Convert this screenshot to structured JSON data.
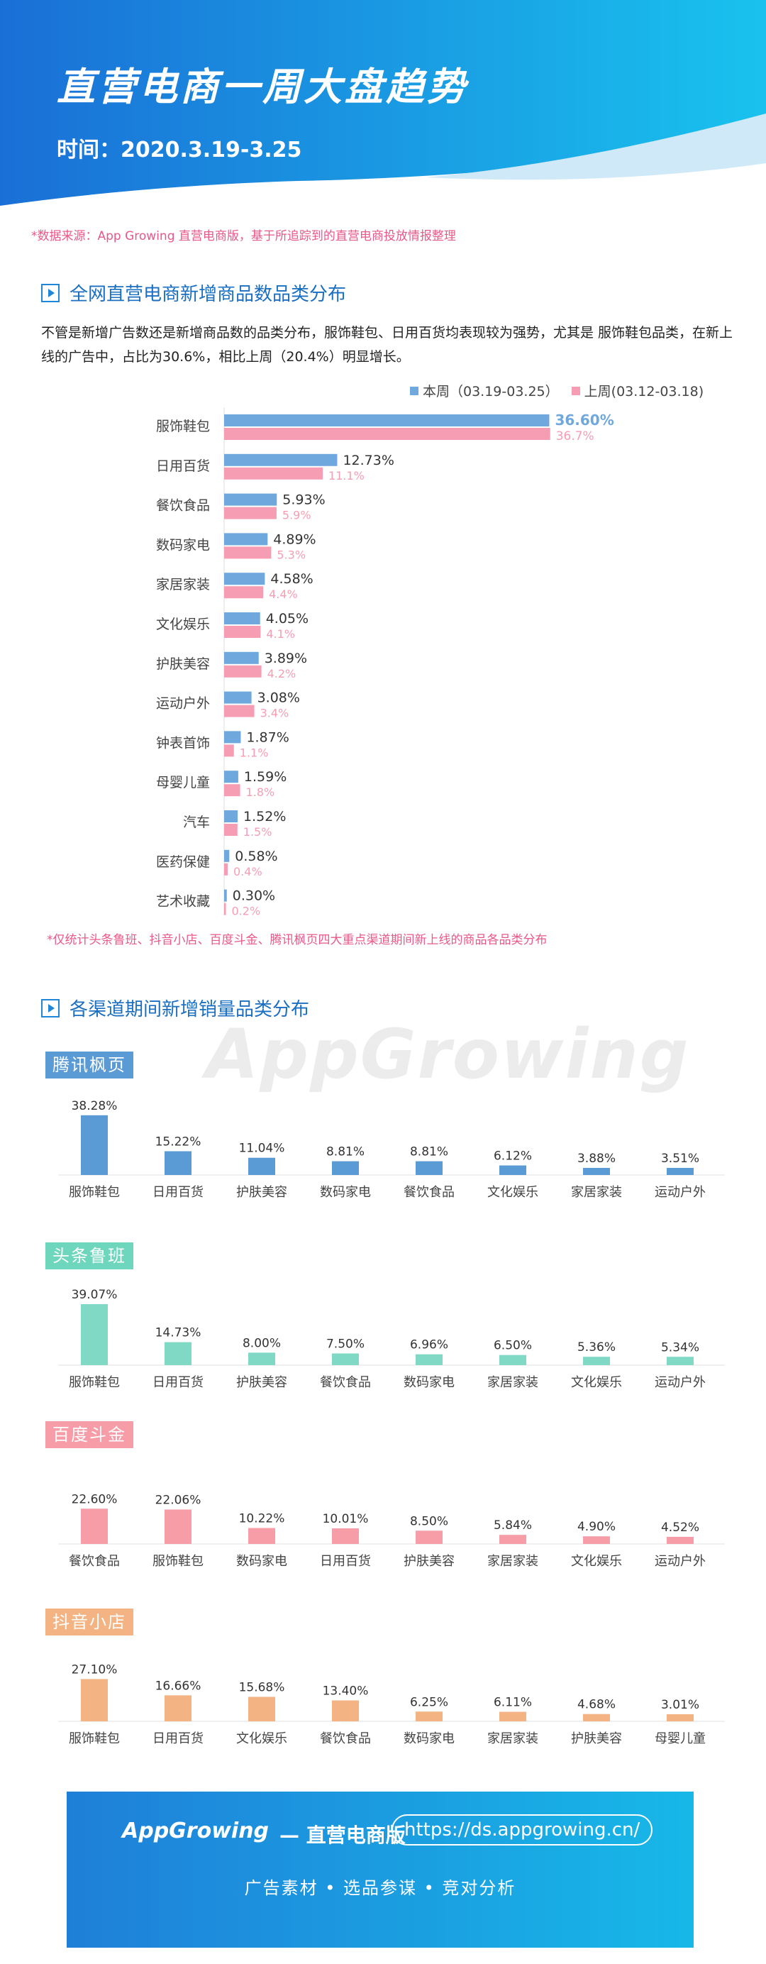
{
  "header": {
    "title": "直营电商一周大盘趋势",
    "date": "时间：2020.3.19-3.25",
    "source": "*数据来源：App Growing 直营电商版，基于所追踪到的直营电商投放情报整理"
  },
  "colors": {
    "this_week": "#6fa8dc",
    "last_week": "#f79db3",
    "tencent": "#5b9bd5",
    "toutiao": "#7fd9c5",
    "baidu": "#f79da8",
    "douyin": "#f3b383"
  },
  "section1": {
    "title": "全网直营电商新增商品数品类分布",
    "description": "不管是新增广告数还是新增商品数的品类分布，服饰鞋包、日用百货均表现较为强势，尤其是 服饰鞋包品类，在新上线的广告中，占比为30.6%，相比上周（20.4%）明显增长。",
    "legend_this": "本周（03.19-03.25）",
    "legend_last": "上周(03.12-03.18)",
    "note": "*仅统计头条鲁班、抖音小店、百度斗金、腾讯枫页四大重点渠道期间新上线的商品各品类分布"
  },
  "section2": {
    "title": "各渠道期间新增销量品类分布",
    "watermark": "AppGrowing"
  },
  "chart_data": [
    {
      "type": "bar",
      "orientation": "horizontal",
      "categories": [
        "服饰鞋包",
        "日用百货",
        "餐饮食品",
        "数码家电",
        "家居家装",
        "文化娱乐",
        "护肤美容",
        "运动户外",
        "钟表首饰",
        "母婴儿童",
        "汽车",
        "医药保健",
        "艺术收藏"
      ],
      "series": [
        {
          "name": "本周（03.19-03.25）",
          "values": [
            36.6,
            12.73,
            5.93,
            4.89,
            4.58,
            4.05,
            3.89,
            3.08,
            1.87,
            1.59,
            1.52,
            0.58,
            0.3
          ],
          "labels": [
            "36.60%",
            "12.73%",
            "5.93%",
            "4.89%",
            "4.58%",
            "4.05%",
            "3.89%",
            "3.08%",
            "1.87%",
            "1.59%",
            "1.52%",
            "0.58%",
            "0.30%"
          ]
        },
        {
          "name": "上周(03.12-03.18)",
          "values": [
            36.7,
            11.1,
            5.9,
            5.3,
            4.4,
            4.1,
            4.2,
            3.4,
            1.1,
            1.8,
            1.5,
            0.4,
            0.2
          ],
          "labels": [
            "36.7%",
            "11.1%",
            "5.9%",
            "5.3%",
            "4.4%",
            "4.1%",
            "4.2%",
            "3.4%",
            "1.1%",
            "1.8%",
            "1.5%",
            "0.4%",
            "0.2%"
          ]
        }
      ],
      "xlim": [
        0,
        38
      ]
    },
    {
      "type": "bar",
      "title": "腾讯枫页",
      "categories": [
        "服饰鞋包",
        "日用百货",
        "护肤美容",
        "数码家电",
        "餐饮食品",
        "文化娱乐",
        "家居家装",
        "运动户外"
      ],
      "values": [
        38.28,
        15.22,
        11.04,
        8.81,
        8.81,
        6.12,
        3.88,
        3.51
      ],
      "labels": [
        "38.28%",
        "15.22%",
        "11.04%",
        "8.81%",
        "8.81%",
        "6.12%",
        "3.88%",
        "3.51%"
      ]
    },
    {
      "type": "bar",
      "title": "头条鲁班",
      "categories": [
        "服饰鞋包",
        "日用百货",
        "护肤美容",
        "餐饮食品",
        "数码家电",
        "家居家装",
        "文化娱乐",
        "运动户外"
      ],
      "values": [
        39.07,
        14.73,
        8.0,
        7.5,
        6.96,
        6.5,
        5.36,
        5.34
      ],
      "labels": [
        "39.07%",
        "14.73%",
        "8.00%",
        "7.50%",
        "6.96%",
        "6.50%",
        "5.36%",
        "5.34%"
      ]
    },
    {
      "type": "bar",
      "title": "百度斗金",
      "categories": [
        "餐饮食品",
        "服饰鞋包",
        "数码家电",
        "日用百货",
        "护肤美容",
        "家居家装",
        "文化娱乐",
        "运动户外"
      ],
      "values": [
        22.6,
        22.06,
        10.22,
        10.01,
        8.5,
        5.84,
        4.9,
        4.52
      ],
      "labels": [
        "22.60%",
        "22.06%",
        "10.22%",
        "10.01%",
        "8.50%",
        "5.84%",
        "4.90%",
        "4.52%"
      ]
    },
    {
      "type": "bar",
      "title": "抖音小店",
      "categories": [
        "服饰鞋包",
        "日用百货",
        "文化娱乐",
        "餐饮食品",
        "数码家电",
        "家居家装",
        "护肤美容",
        "母婴儿童"
      ],
      "values": [
        27.1,
        16.66,
        15.68,
        13.4,
        6.25,
        6.11,
        4.68,
        3.01
      ],
      "labels": [
        "27.10%",
        "16.66%",
        "15.68%",
        "13.40%",
        "6.25%",
        "6.11%",
        "4.68%",
        "3.01%"
      ]
    }
  ],
  "footer": {
    "brand": "AppGrowing",
    "dash_text": "— 直营电商版",
    "url": "https://ds.appgrowing.cn/",
    "tags": "广告素材 • 选品参谋 • 竞对分析"
  }
}
